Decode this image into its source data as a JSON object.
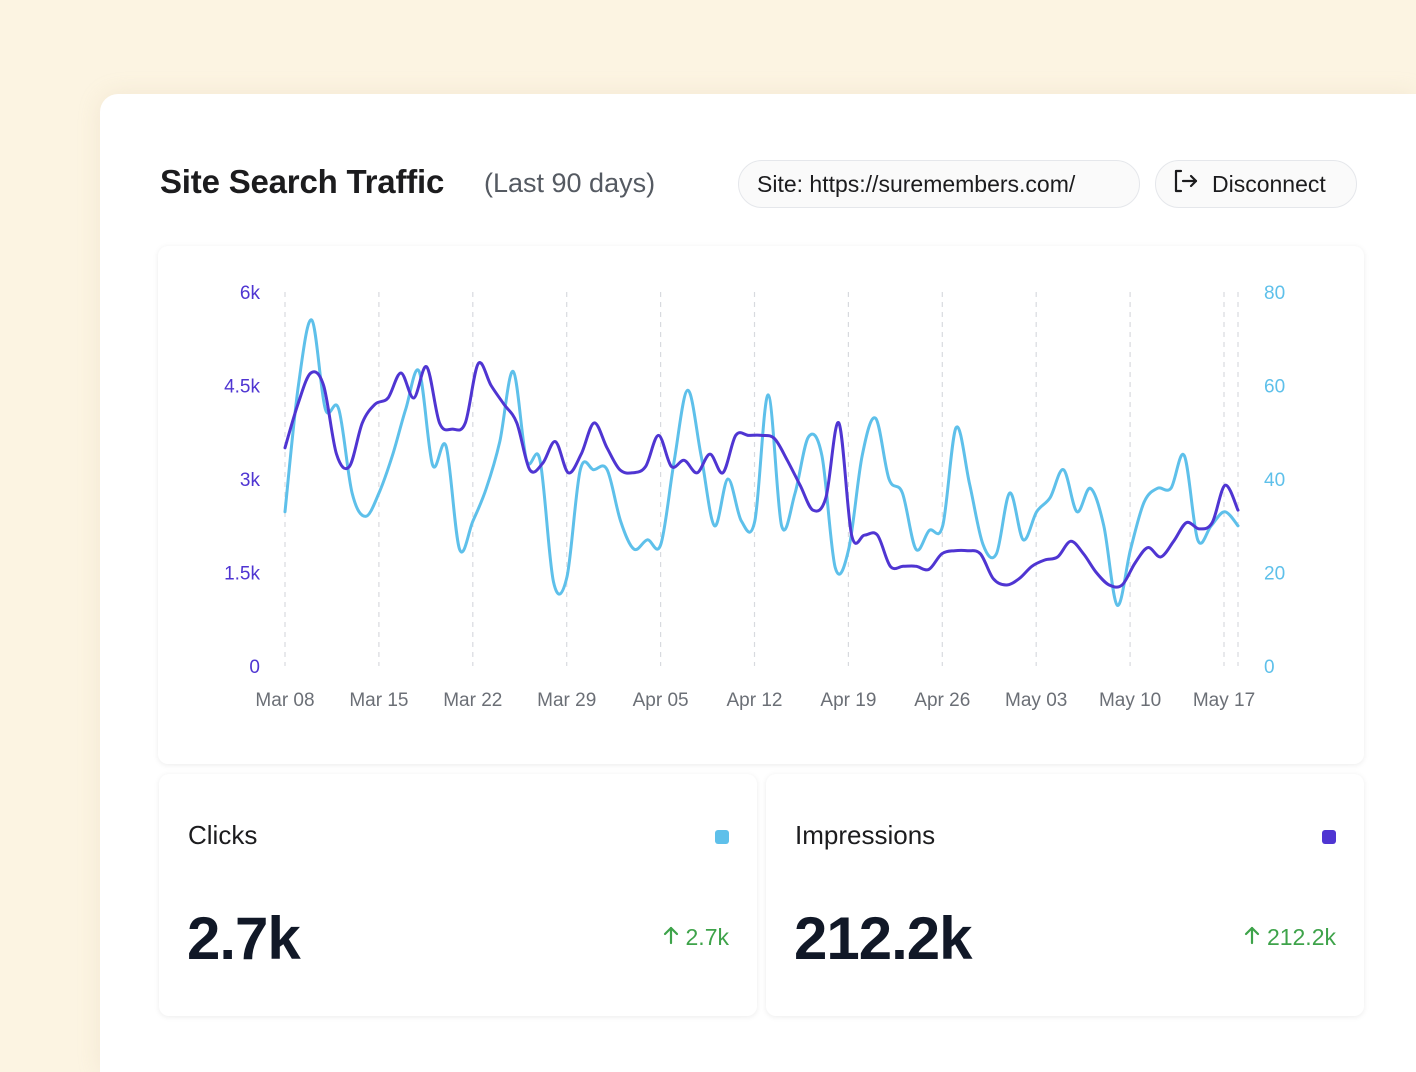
{
  "header": {
    "title": "Site Search Traffic",
    "subtitle": "(Last 90 days)",
    "site_label": "Site: https://suremembers.com/",
    "disconnect_label": "Disconnect",
    "disconnect_icon": "logout-icon"
  },
  "colors": {
    "impressions": "#4f35d2",
    "clicks": "#5ec0ea",
    "positive": "#3ea34a",
    "page_bg": "#fcf4e2"
  },
  "chart_data": {
    "type": "line",
    "x_ticks": [
      "Mar 08",
      "Mar 15",
      "Mar 22",
      "Mar 29",
      "Apr 05",
      "Apr 12",
      "Apr 19",
      "Apr 26",
      "May 03",
      "May 10",
      "May 17"
    ],
    "y_left": {
      "ticks": [
        "0",
        "1.5k",
        "3k",
        "4.5k",
        "6k"
      ],
      "range": [
        0,
        6000
      ]
    },
    "y_right": {
      "ticks": [
        "0",
        "20",
        "40",
        "60",
        "80"
      ],
      "range": [
        0,
        80
      ]
    },
    "grid": "vertical-dashed",
    "series": [
      {
        "name": "Impressions",
        "axis": "left",
        "color": "#4f35d2",
        "values": [
          3500,
          4200,
          4700,
          4500,
          3400,
          3200,
          3900,
          4200,
          4300,
          4700,
          4300,
          4800,
          3900,
          3800,
          3900,
          4850,
          4500,
          4200,
          3900,
          3150,
          3250,
          3600,
          3100,
          3400,
          3900,
          3500,
          3150,
          3100,
          3200,
          3700,
          3200,
          3300,
          3100,
          3400,
          3100,
          3700,
          3700,
          3700,
          3650,
          3300,
          2900,
          2500,
          2700,
          3900,
          2100,
          2100,
          2100,
          1600,
          1600,
          1600,
          1550,
          1800,
          1850,
          1850,
          1800,
          1400,
          1300,
          1400,
          1600,
          1700,
          1750,
          2000,
          1800,
          1500,
          1300,
          1300,
          1650,
          1900,
          1750,
          2000,
          2300,
          2200,
          2300,
          2900,
          2500
        ]
      },
      {
        "name": "Clicks",
        "axis": "right",
        "color": "#5ec0ea",
        "values": [
          33,
          60,
          74,
          55,
          55,
          37,
          32,
          37,
          45,
          55,
          63,
          43,
          47,
          25,
          31,
          38,
          48,
          63,
          44,
          44,
          18,
          19,
          42,
          42,
          42,
          31,
          25,
          27,
          26,
          44,
          59,
          45,
          30,
          40,
          31,
          31,
          58,
          30,
          37,
          49,
          45,
          21,
          25,
          45,
          53,
          40,
          37,
          25,
          29,
          30,
          51,
          39,
          26,
          24,
          37,
          27,
          33,
          36,
          42,
          33,
          38,
          30,
          13,
          25,
          35,
          38,
          38,
          45,
          27,
          30,
          33,
          30
        ]
      }
    ]
  },
  "stats": {
    "clicks": {
      "label": "Clicks",
      "value": "2.7k",
      "change": "2.7k",
      "color": "#5ec0ea"
    },
    "impressions": {
      "label": "Impressions",
      "value": "212.2k",
      "change": "212.2k",
      "color": "#4f35d2"
    }
  }
}
